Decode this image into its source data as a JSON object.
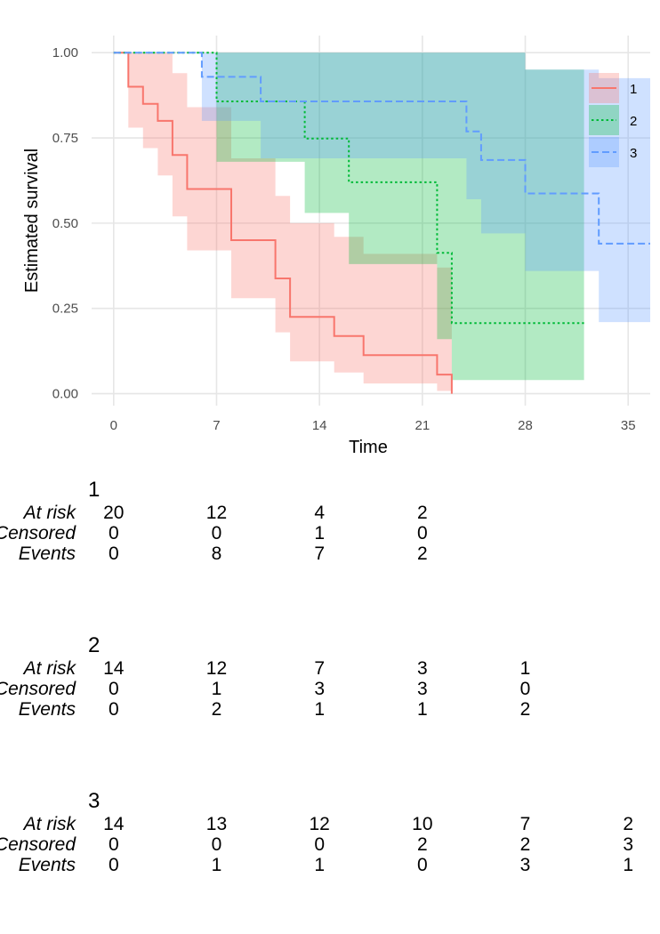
{
  "chart_data": {
    "type": "line",
    "xlabel": "Time",
    "ylabel": "Estimated survival",
    "xlim": [
      -1.5,
      36.5
    ],
    "ylim": [
      -0.035,
      1.05
    ],
    "xticks": [
      0,
      7,
      14,
      21,
      28,
      35
    ],
    "yticks": [
      0.0,
      0.25,
      0.5,
      0.75,
      1.0
    ],
    "ytick_labels": [
      "0.00",
      "0.25",
      "0.50",
      "0.75",
      "1.00"
    ],
    "grid": true,
    "legend_position": "top-right",
    "series": [
      {
        "name": "1",
        "color": "#F8766D",
        "dash": "solid",
        "steps": [
          [
            0,
            1.0
          ],
          [
            1,
            0.9
          ],
          [
            2,
            0.85
          ],
          [
            3,
            0.8
          ],
          [
            4,
            0.7
          ],
          [
            5,
            0.6
          ],
          [
            8,
            0.45
          ],
          [
            11,
            0.338
          ],
          [
            12,
            0.225
          ],
          [
            15,
            0.169
          ],
          [
            17,
            0.113
          ],
          [
            22,
            0.056
          ],
          [
            23,
            0.0
          ]
        ],
        "ci": [
          [
            0,
            1.0,
            1.0
          ],
          [
            1,
            0.78,
            1.0
          ],
          [
            2,
            0.72,
            1.0
          ],
          [
            3,
            0.64,
            1.0
          ],
          [
            4,
            0.52,
            0.94
          ],
          [
            5,
            0.42,
            0.84
          ],
          [
            8,
            0.28,
            0.69
          ],
          [
            11,
            0.18,
            0.58
          ],
          [
            12,
            0.095,
            0.5
          ],
          [
            15,
            0.062,
            0.46
          ],
          [
            17,
            0.03,
            0.41
          ],
          [
            22,
            0.008,
            0.37
          ],
          [
            23,
            0.008,
            0.37
          ]
        ],
        "end_x": 23
      },
      {
        "name": "2",
        "color": "#00BA38",
        "dash": "dotted",
        "steps": [
          [
            0,
            1.0
          ],
          [
            7,
            0.857
          ],
          [
            13,
            0.748
          ],
          [
            16,
            0.62
          ],
          [
            22,
            0.413
          ],
          [
            23,
            0.207
          ]
        ],
        "ci": [
          [
            0,
            1.0,
            1.0
          ],
          [
            7,
            0.68,
            1.0
          ],
          [
            13,
            0.53,
            1.0
          ],
          [
            16,
            0.38,
            1.0
          ],
          [
            22,
            0.16,
            1.0
          ],
          [
            23,
            0.04,
            1.0
          ],
          [
            28,
            0.04,
            0.95
          ]
        ],
        "end_x": 32
      },
      {
        "name": "3",
        "color": "#619CFF",
        "dash": "dashed",
        "steps": [
          [
            0,
            1.0
          ],
          [
            6,
            0.929
          ],
          [
            10,
            0.857
          ],
          [
            24,
            0.769
          ],
          [
            25,
            0.685
          ],
          [
            28,
            0.587
          ],
          [
            33,
            0.44
          ]
        ],
        "ci": [
          [
            0,
            1.0,
            1.0
          ],
          [
            6,
            0.8,
            1.0
          ],
          [
            10,
            0.69,
            1.0
          ],
          [
            24,
            0.57,
            1.0
          ],
          [
            25,
            0.47,
            1.0
          ],
          [
            28,
            0.36,
            0.95
          ],
          [
            33,
            0.21,
            0.925
          ]
        ],
        "end_x": 36.5
      }
    ]
  },
  "risk_table": {
    "row_labels": [
      "At risk",
      "Censored",
      "Events"
    ],
    "time_points": [
      0,
      7,
      14,
      21,
      28,
      35
    ],
    "groups": [
      {
        "title": "1",
        "at_risk": [
          "20",
          "12",
          "4",
          "2",
          "",
          ""
        ],
        "censored": [
          "0",
          "0",
          "1",
          "0",
          "",
          ""
        ],
        "events": [
          "0",
          "8",
          "7",
          "2",
          "",
          ""
        ]
      },
      {
        "title": "2",
        "at_risk": [
          "14",
          "12",
          "7",
          "3",
          "1",
          ""
        ],
        "censored": [
          "0",
          "1",
          "3",
          "3",
          "0",
          ""
        ],
        "events": [
          "0",
          "2",
          "1",
          "1",
          "2",
          ""
        ]
      },
      {
        "title": "3",
        "at_risk": [
          "14",
          "13",
          "12",
          "10",
          "7",
          "2"
        ],
        "censored": [
          "0",
          "0",
          "0",
          "2",
          "2",
          "3"
        ],
        "events": [
          "0",
          "1",
          "1",
          "0",
          "3",
          "1"
        ]
      }
    ]
  }
}
